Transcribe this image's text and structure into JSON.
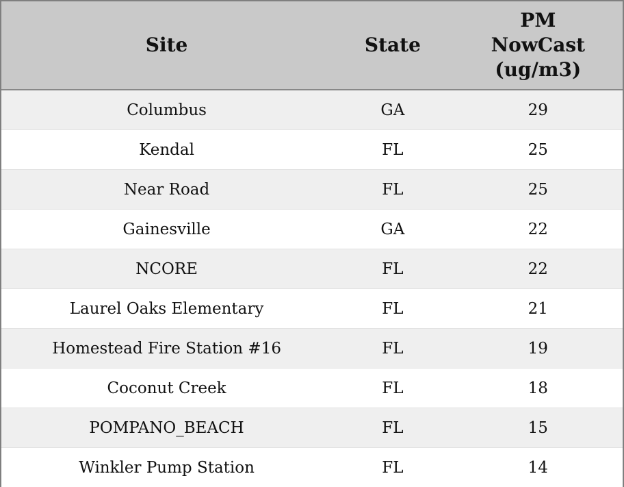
{
  "colors": {
    "header_bg": "#c9c9c9",
    "row_alt_bg": "#efefef",
    "row_bg": "#ffffff",
    "outer_border": "#7f7f7f",
    "text": "#111111"
  },
  "chart_data": {
    "type": "table",
    "columns": [
      "Site",
      "State",
      "PM NowCast (ug/m3)"
    ],
    "rows": [
      [
        "Columbus",
        "GA",
        29
      ],
      [
        "Kendal",
        "FL",
        25
      ],
      [
        "Near Road",
        "FL",
        25
      ],
      [
        "Gainesville",
        "GA",
        22
      ],
      [
        "NCORE",
        "FL",
        22
      ],
      [
        "Laurel Oaks Elementary",
        "FL",
        21
      ],
      [
        "Homestead Fire Station #16",
        "FL",
        19
      ],
      [
        "Coconut Creek",
        "FL",
        18
      ],
      [
        "POMPANO_BEACH",
        "FL",
        15
      ],
      [
        "Winkler Pump Station",
        "FL",
        14
      ]
    ]
  }
}
